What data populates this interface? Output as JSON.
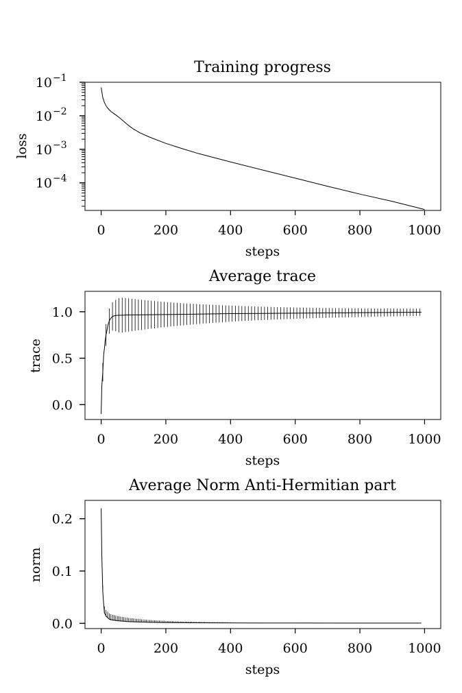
{
  "chart_data": [
    {
      "type": "line",
      "title": "Training progress",
      "xlabel": "steps",
      "ylabel": "loss",
      "yscale": "log",
      "xlim": [
        -50,
        1050
      ],
      "ylim": [
        1.5e-05,
        0.1
      ],
      "xticks": [
        0,
        200,
        400,
        600,
        800,
        1000
      ],
      "xtick_labels": [
        "0",
        "200",
        "400",
        "600",
        "800",
        "1000"
      ],
      "yticks": [
        0.0001,
        0.001,
        0.01,
        0.1
      ],
      "ytick_labels": [
        {
          "base": "10",
          "exp": "−4"
        },
        {
          "base": "10",
          "exp": "−3"
        },
        {
          "base": "10",
          "exp": "−2"
        },
        {
          "base": "10",
          "exp": "−1"
        }
      ],
      "grid": false,
      "series": [
        {
          "x": [
            0,
            5,
            10,
            15,
            20,
            30,
            40,
            50,
            60,
            70,
            80,
            90,
            100,
            120,
            150,
            200,
            250,
            300,
            400,
            500,
            600,
            700,
            800,
            900,
            1000
          ],
          "y": [
            0.07,
            0.035,
            0.025,
            0.02,
            0.017,
            0.0135,
            0.0115,
            0.0098,
            0.0082,
            0.0068,
            0.0056,
            0.0047,
            0.004,
            0.0031,
            0.0023,
            0.0015,
            0.00105,
            0.00075,
            0.00042,
            0.00024,
            0.000138,
            7.9e-05,
            4.6e-05,
            2.8e-05,
            1.6e-05
          ]
        }
      ]
    },
    {
      "type": "line",
      "title": "Average trace",
      "xlabel": "steps",
      "ylabel": "trace",
      "xlim": [
        -50,
        1050
      ],
      "ylim": [
        -0.16,
        1.22
      ],
      "xticks": [
        0,
        200,
        400,
        600,
        800,
        1000
      ],
      "xtick_labels": [
        "0",
        "200",
        "400",
        "600",
        "800",
        "1000"
      ],
      "yticks": [
        0.0,
        0.5,
        1.0
      ],
      "ytick_labels": [
        "0.0",
        "0.5",
        "1.0"
      ],
      "grid": false,
      "series": [
        {
          "x": [
            0,
            2,
            5,
            8,
            10,
            12,
            15,
            18,
            20,
            22,
            25,
            28,
            30,
            35,
            40,
            45,
            50,
            60,
            70,
            80,
            100,
            150,
            200,
            300,
            400,
            600,
            800,
            990
          ],
          "y": [
            -0.1,
            0.2,
            0.35,
            0.55,
            0.6,
            0.68,
            0.75,
            0.8,
            0.84,
            0.87,
            0.9,
            0.92,
            0.93,
            0.95,
            0.955,
            0.96,
            0.962,
            0.963,
            0.964,
            0.965,
            0.966,
            0.968,
            0.97,
            0.975,
            0.98,
            0.985,
            0.99,
            0.995
          ]
        }
      ],
      "oscillation_spikes": {
        "x_start": 5,
        "x_end": 990,
        "step": 10,
        "amplitude_max": 0.19,
        "amplitude_min": 0.03
      }
    },
    {
      "type": "line",
      "title": "Average Norm Anti-Hermitian part",
      "xlabel": "steps",
      "ylabel": "norm",
      "xlim": [
        -50,
        1050
      ],
      "ylim": [
        -0.01,
        0.235
      ],
      "xticks": [
        0,
        200,
        400,
        600,
        800,
        1000
      ],
      "xtick_labels": [
        "0",
        "200",
        "400",
        "600",
        "800",
        "1000"
      ],
      "yticks": [
        0.0,
        0.1,
        0.2
      ],
      "ytick_labels": [
        "0.0",
        "0.1",
        "0.2"
      ],
      "grid": false,
      "series": [
        {
          "x": [
            0,
            2,
            5,
            8,
            10,
            15,
            20,
            25,
            30,
            40,
            50,
            60,
            80,
            100,
            150,
            200,
            300,
            400,
            600,
            800,
            990
          ],
          "y": [
            0.22,
            0.13,
            0.06,
            0.035,
            0.02,
            0.014,
            0.011,
            0.008,
            0.007,
            0.006,
            0.005,
            0.0045,
            0.0035,
            0.003,
            0.002,
            0.0015,
            0.001,
            0.0008,
            0.0006,
            0.0005,
            0.0004
          ]
        }
      ],
      "oscillation_spikes": {
        "x_start": 5,
        "x_end": 400,
        "step": 5,
        "amplitude_max": 0.012,
        "amplitude_min": 0.0005
      }
    }
  ]
}
